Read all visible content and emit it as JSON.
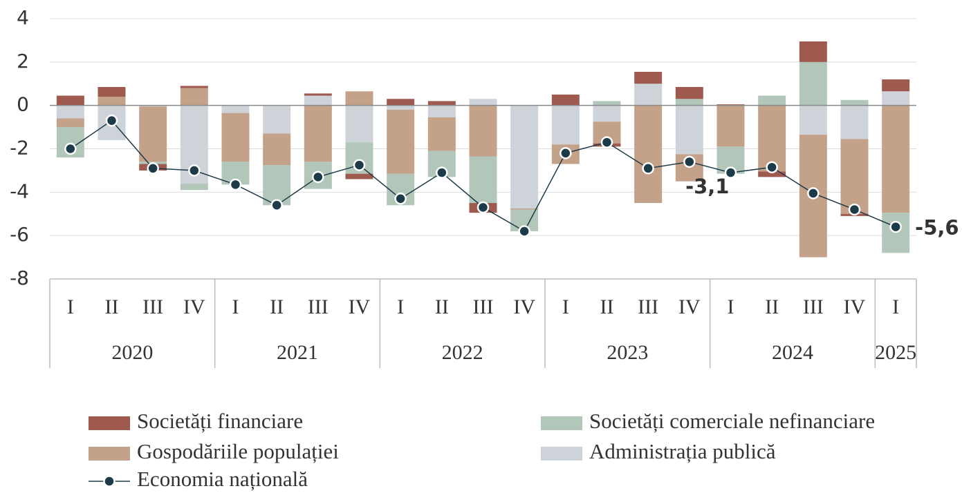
{
  "chart_data": {
    "type": "stacked-bar-line",
    "categories": [
      "I",
      "II",
      "III",
      "IV",
      "I",
      "II",
      "III",
      "IV",
      "I",
      "II",
      "III",
      "IV",
      "I",
      "II",
      "III",
      "IV",
      "I",
      "II",
      "III",
      "IV",
      "I"
    ],
    "years": [
      "2020",
      null,
      null,
      null,
      "2021",
      null,
      null,
      null,
      "2022",
      null,
      null,
      null,
      "2023",
      null,
      null,
      null,
      "2024",
      null,
      null,
      null,
      "2025"
    ],
    "series": [
      {
        "name": "Societăți financiare",
        "color": "#9e5a4e",
        "values": [
          0.45,
          0.45,
          -0.3,
          0.1,
          0,
          0,
          0.1,
          -0.25,
          0.3,
          0.2,
          -0.45,
          0,
          0.5,
          -0.15,
          0.55,
          0.55,
          0.05,
          -0.25,
          0.95,
          -0.1,
          0.55
        ]
      },
      {
        "name": "Societăți comerciale nefinanciare",
        "color": "#b2c7b9",
        "values": [
          -1.4,
          0,
          -0.1,
          -0.3,
          -1.05,
          -1.85,
          -1.25,
          -1.45,
          -1.45,
          -1.2,
          -2.15,
          -1.0,
          0,
          0.2,
          0,
          0.3,
          -1.25,
          0.45,
          2.0,
          0.25,
          -1.85
        ]
      },
      {
        "name": "Gospodăriile populației",
        "color": "#c4a189",
        "values": [
          -0.4,
          0.4,
          -2.55,
          0.8,
          -2.25,
          -1.45,
          -2.6,
          0.65,
          -2.95,
          -1.55,
          -2.35,
          -0.05,
          -0.9,
          -1.0,
          -4.5,
          -1.25,
          -1.9,
          -3.05,
          -5.65,
          -3.45,
          -4.95
        ]
      },
      {
        "name": "Administrația publică",
        "color": "#cdd3d8",
        "values": [
          -0.6,
          -1.6,
          -0.05,
          -3.6,
          -0.35,
          -1.3,
          0.45,
          -1.7,
          -0.2,
          -0.55,
          0.3,
          -4.75,
          -1.8,
          -0.75,
          1.0,
          -2.25,
          0,
          0,
          -1.35,
          -1.55,
          0.65
        ]
      }
    ],
    "line": {
      "name": "Economia națională",
      "color": "#1c3a47",
      "values": [
        -2.0,
        -0.7,
        -2.9,
        -3.0,
        -3.65,
        -4.6,
        -3.3,
        -2.75,
        -4.3,
        -3.1,
        -4.7,
        -5.8,
        -2.2,
        -1.7,
        -2.9,
        -2.6,
        -3.1,
        -2.85,
        -4.05,
        -4.8,
        -5.6
      ],
      "value_labels": [
        null,
        null,
        null,
        null,
        null,
        null,
        null,
        null,
        null,
        null,
        null,
        null,
        null,
        null,
        null,
        null,
        "-3,1",
        null,
        null,
        null,
        "-5,6"
      ]
    },
    "ylim": [
      -8,
      4
    ],
    "yticks": [
      4,
      2,
      0,
      -2,
      -4,
      -6,
      -8
    ],
    "grid": true
  }
}
